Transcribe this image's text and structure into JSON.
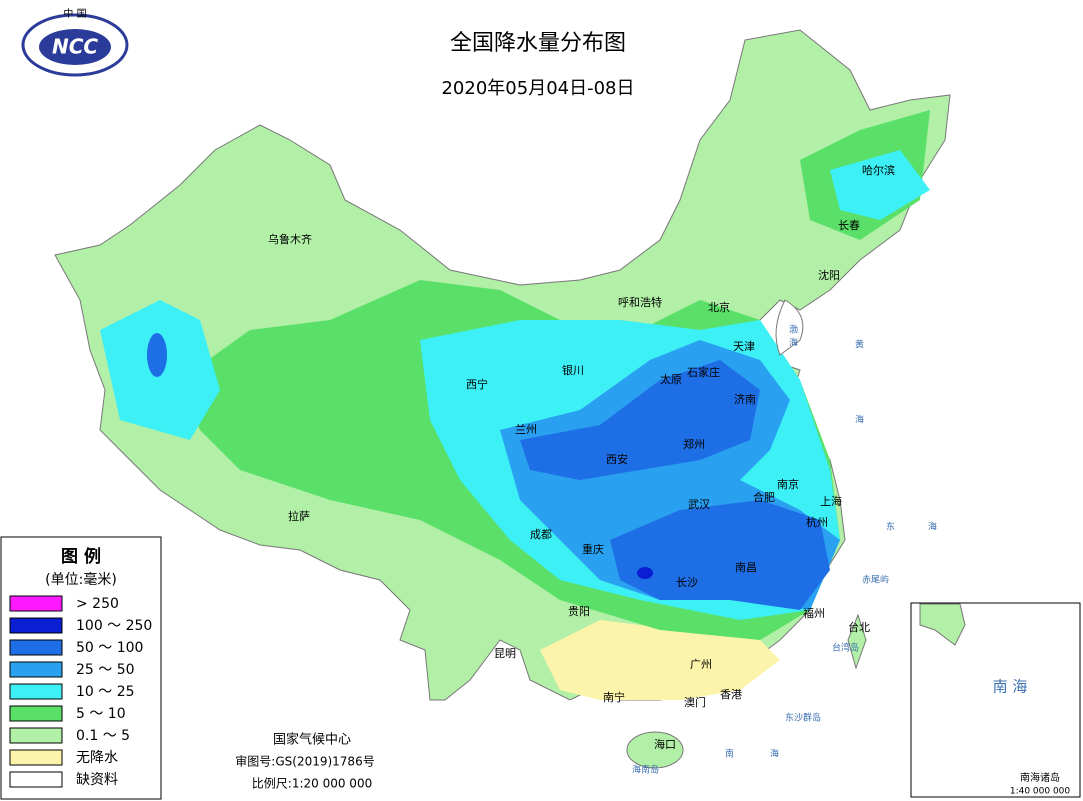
{
  "header": {
    "logo_top": "中 国",
    "logo": "NCC",
    "title": "全国降水量分布图",
    "subtitle": "2020年05月04日-08日"
  },
  "legend": {
    "title": "图 例",
    "unit": "(单位:毫米)",
    "items": [
      {
        "label": "> 250",
        "color": "#ff19ff"
      },
      {
        "label": "100 ～ 250",
        "color": "#0a1ed2"
      },
      {
        "label": "50 ～ 100",
        "color": "#1e6ee6"
      },
      {
        "label": "25 ～ 50",
        "color": "#2aa0f0"
      },
      {
        "label": "10 ～ 25",
        "color": "#3cf0f5"
      },
      {
        "label": "5 ～ 10",
        "color": "#5ae068"
      },
      {
        "label": "0.1 ～ 5",
        "color": "#b2f0a8"
      },
      {
        "label": "无降水",
        "color": "#fbf4aa"
      },
      {
        "label": "缺资料",
        "color": "#ffffff"
      }
    ]
  },
  "credits": {
    "agency": "国家气候中心",
    "approval": "审图号:GS(2019)1786号",
    "scale": "比例尺:1:20 000 000"
  },
  "cities": [
    "乌鲁木齐",
    "哈尔滨",
    "长春",
    "沈阳",
    "呼和浩特",
    "北京",
    "天津",
    "石家庄",
    "太原",
    "济南",
    "银川",
    "西宁",
    "兰州",
    "西安",
    "郑州",
    "南京",
    "合肥",
    "上海",
    "杭州",
    "武汉",
    "成都",
    "重庆",
    "长沙",
    "南昌",
    "福州",
    "台北",
    "贵阳",
    "昆明",
    "广州",
    "南宁",
    "香港",
    "澳门",
    "海口",
    "拉萨"
  ],
  "places": {
    "bohai": "渤",
    "bohai2": "海",
    "huanghai": "黄",
    "huanghai2": "海",
    "donghai": "东",
    "donghai2": "海",
    "nanhai": "南",
    "nanhai2": "海",
    "hainan": "海南岛",
    "taiwan": "台湾岛",
    "dongsha": "东沙群岛",
    "chiwei": "赤尾屿"
  },
  "inset": {
    "sea": "南 海",
    "title": "南海诸岛",
    "scale": "1:40 000 000"
  }
}
